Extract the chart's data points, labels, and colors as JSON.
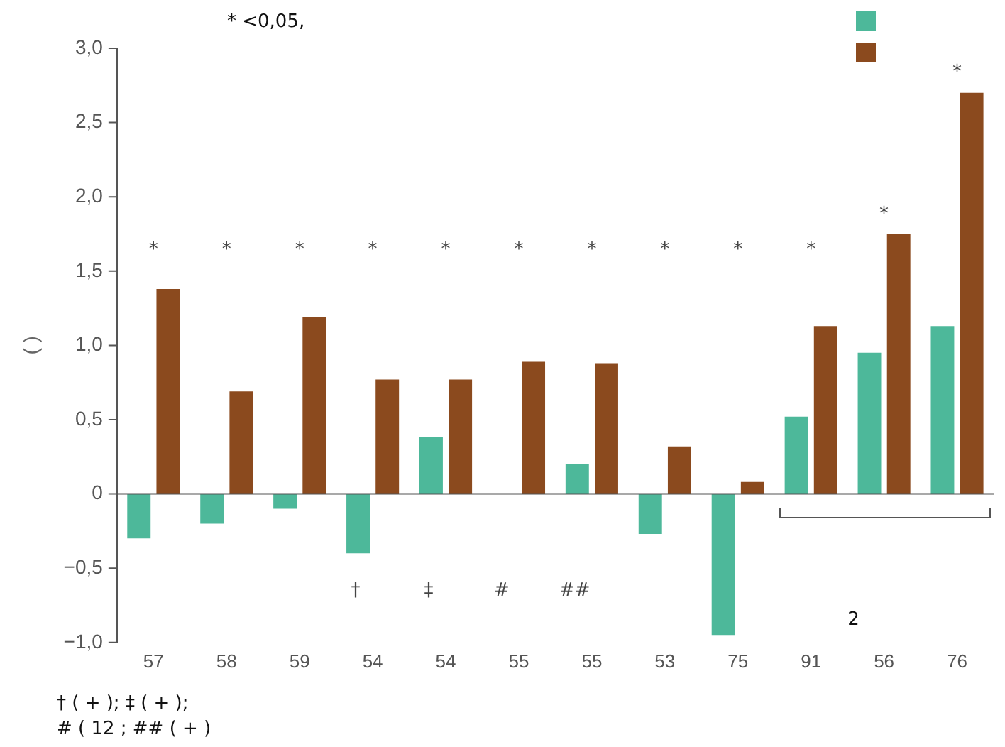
{
  "chart_data": {
    "type": "bar",
    "ylabel": "( )",
    "categories": [
      "57",
      "58",
      "59",
      "54",
      "54",
      "55",
      "55",
      "53",
      "75",
      "91",
      "56",
      "76"
    ],
    "series": [
      {
        "color": "#4db89a",
        "values": [
          -0.3,
          -0.2,
          -0.1,
          -0.4,
          0.38,
          0,
          0.2,
          -0.27,
          -0.95,
          0.52,
          0.95,
          1.13
        ]
      },
      {
        "color": "#8b4a1e",
        "values": [
          1.38,
          0.69,
          1.19,
          0.77,
          0.77,
          0.89,
          0.88,
          0.32,
          0.08,
          1.13,
          1.75,
          2.7
        ]
      }
    ],
    "ylim": [
      -1.0,
      3.0
    ],
    "yticks": [
      {
        "value": -1,
        "label": "−1,0"
      },
      {
        "value": -0.5,
        "label": "−0,5"
      },
      0,
      {
        "value": 0.5,
        "label": "0,5"
      },
      {
        "value": 1,
        "label": "1,0"
      },
      {
        "value": 1.5,
        "label": "1,5"
      },
      {
        "value": 2,
        "label": "2,0"
      },
      {
        "value": 2.5,
        "label": "2,5"
      },
      {
        "value": 3,
        "label": "3,0"
      }
    ],
    "annotations": [
      "* <0,05,",
      "*",
      "*",
      "*",
      "*",
      "*",
      "*",
      "*",
      "*",
      "*",
      "*",
      "*",
      "*",
      "†",
      "‡",
      "#",
      "##",
      "2",
      "† ( + ); ‡ ( + );",
      "# ( 12 ; ## ( + )"
    ]
  }
}
